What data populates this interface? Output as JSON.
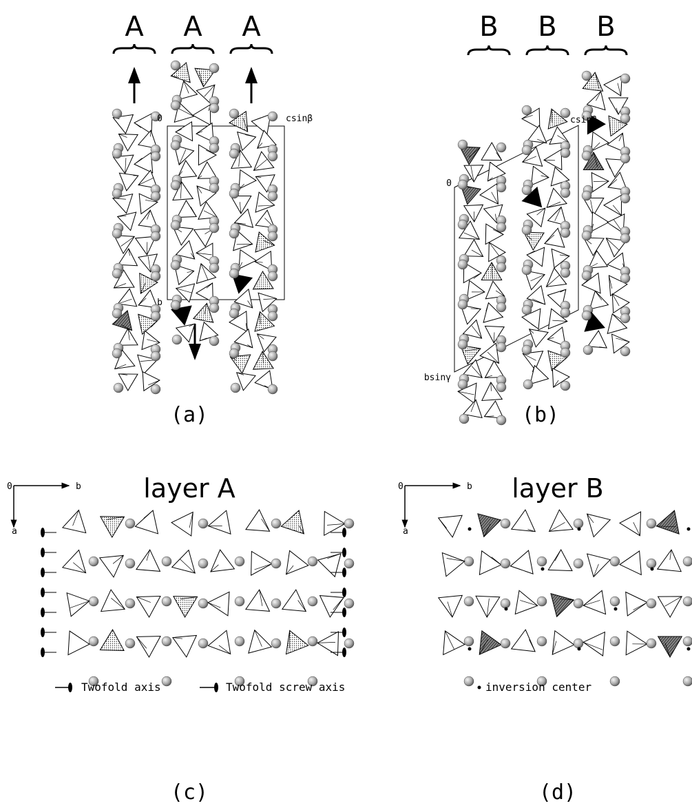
{
  "panels": [
    {
      "label": "(a)",
      "stack_labels": [
        "A",
        "A",
        "A"
      ],
      "origin": "0",
      "c_axis": "csinβ",
      "b_axis": "b"
    },
    {
      "label": "(b)",
      "stack_labels": [
        "B",
        "B",
        "B"
      ],
      "origin": "0",
      "c_axis": "csinβ",
      "b_axis": "bsinγ"
    },
    {
      "label": "(c)",
      "title": "layer A",
      "origin": "0",
      "b_axis": "b",
      "a_axis": "a",
      "legend": [
        "Twofold axis",
        "Twofold screw axis"
      ]
    },
    {
      "label": "(d)",
      "title": "layer B",
      "origin": "0",
      "b_axis": "b",
      "a_axis": "a",
      "legend": [
        "inversion center"
      ]
    }
  ]
}
